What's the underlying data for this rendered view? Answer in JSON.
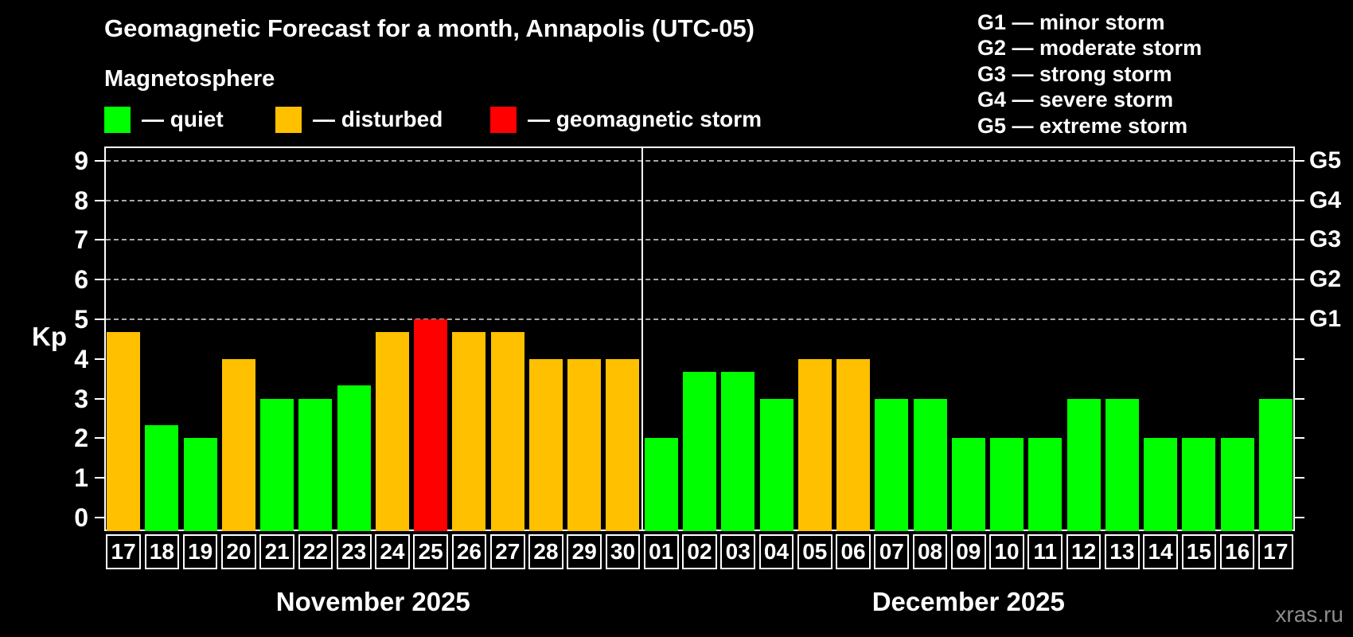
{
  "title": "Geomagnetic Forecast for a month, Annapolis (UTC-05)",
  "subtitle": "Magnetosphere",
  "condition_legend": [
    {
      "key": "quiet",
      "label": "— quiet",
      "color": "#00ff00"
    },
    {
      "key": "disturbed",
      "label": "— disturbed",
      "color": "#ffc000"
    },
    {
      "key": "storm",
      "label": "— geomagnetic storm",
      "color": "#ff0000"
    }
  ],
  "storm_scale_legend": [
    "G1 — minor storm",
    "G2 — moderate storm",
    "G3 — strong storm",
    "G4 — severe storm",
    "G5 — extreme storm"
  ],
  "watermark": "xras.ru",
  "chart_data": {
    "type": "bar",
    "title": "Geomagnetic Forecast for a month, Annapolis (UTC-05)",
    "subtitle": "Magnetosphere",
    "ylabel": "Kp",
    "xlabel": "",
    "ylim": [
      -0.35,
      9.35
    ],
    "y_ticks": [
      0,
      1,
      2,
      3,
      4,
      5,
      6,
      7,
      8,
      9
    ],
    "gridlines_at_kp": [
      5,
      6,
      7,
      8,
      9
    ],
    "grid": "dashed horizontal lines at storm levels G1-G5",
    "legend_position": "top-left",
    "right_axis_labels": [
      {
        "label": "G1",
        "kp": 5
      },
      {
        "label": "G2",
        "kp": 6
      },
      {
        "label": "G3",
        "kp": 7
      },
      {
        "label": "G4",
        "kp": 8
      },
      {
        "label": "G5",
        "kp": 9
      }
    ],
    "status_colors": {
      "quiet": "#00ff00",
      "disturbed": "#ffc000",
      "storm": "#ff0000"
    },
    "months": [
      {
        "label": "November 2025",
        "points": [
          {
            "day": "17",
            "kp": 4.67,
            "status": "disturbed"
          },
          {
            "day": "18",
            "kp": 2.33,
            "status": "quiet"
          },
          {
            "day": "19",
            "kp": 2,
            "status": "quiet"
          },
          {
            "day": "20",
            "kp": 4,
            "status": "disturbed"
          },
          {
            "day": "21",
            "kp": 3,
            "status": "quiet"
          },
          {
            "day": "22",
            "kp": 3,
            "status": "quiet"
          },
          {
            "day": "23",
            "kp": 3.33,
            "status": "quiet"
          },
          {
            "day": "24",
            "kp": 4.67,
            "status": "disturbed"
          },
          {
            "day": "25",
            "kp": 5,
            "status": "storm"
          },
          {
            "day": "26",
            "kp": 4.67,
            "status": "disturbed"
          },
          {
            "day": "27",
            "kp": 4.67,
            "status": "disturbed"
          },
          {
            "day": "28",
            "kp": 4,
            "status": "disturbed"
          },
          {
            "day": "29",
            "kp": 4,
            "status": "disturbed"
          },
          {
            "day": "30",
            "kp": 4,
            "status": "disturbed"
          }
        ]
      },
      {
        "label": "December 2025",
        "points": [
          {
            "day": "01",
            "kp": 2,
            "status": "quiet"
          },
          {
            "day": "02",
            "kp": 3.67,
            "status": "quiet"
          },
          {
            "day": "03",
            "kp": 3.67,
            "status": "quiet"
          },
          {
            "day": "04",
            "kp": 3,
            "status": "quiet"
          },
          {
            "day": "05",
            "kp": 4,
            "status": "disturbed"
          },
          {
            "day": "06",
            "kp": 4,
            "status": "disturbed"
          },
          {
            "day": "07",
            "kp": 3,
            "status": "quiet"
          },
          {
            "day": "08",
            "kp": 3,
            "status": "quiet"
          },
          {
            "day": "09",
            "kp": 2,
            "status": "quiet"
          },
          {
            "day": "10",
            "kp": 2,
            "status": "quiet"
          },
          {
            "day": "11",
            "kp": 2,
            "status": "quiet"
          },
          {
            "day": "12",
            "kp": 3,
            "status": "quiet"
          },
          {
            "day": "13",
            "kp": 3,
            "status": "quiet"
          },
          {
            "day": "14",
            "kp": 2,
            "status": "quiet"
          },
          {
            "day": "15",
            "kp": 2,
            "status": "quiet"
          },
          {
            "day": "16",
            "kp": 2,
            "status": "quiet"
          },
          {
            "day": "17",
            "kp": 3,
            "status": "quiet"
          }
        ]
      }
    ]
  }
}
